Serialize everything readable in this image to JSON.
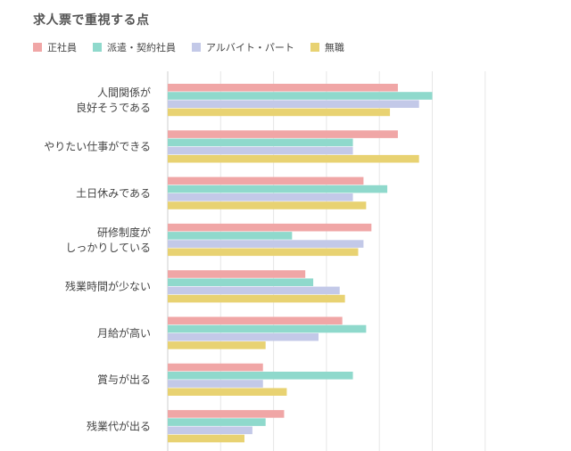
{
  "chart_data": {
    "type": "bar",
    "orientation": "horizontal",
    "title": "求人票で重視する点",
    "categories": [
      [
        "人間関係が",
        "良好そうである"
      ],
      [
        "やりたい仕事ができる"
      ],
      [
        "土日休みである"
      ],
      [
        "研修制度が",
        "しっかりしている"
      ],
      [
        "残業時間が少ない"
      ],
      [
        "月給が高い"
      ],
      [
        "賞与が出る"
      ],
      [
        "残業代が出る"
      ]
    ],
    "series": [
      {
        "name": "正社員",
        "color": "#f0a6a6",
        "values": [
          43.5,
          43.5,
          37,
          38.5,
          26,
          33,
          18,
          22
        ]
      },
      {
        "name": "派遣・契約社員",
        "color": "#8fd9cc",
        "values": [
          50,
          35,
          41.5,
          23.5,
          27.5,
          37.5,
          35,
          18.5
        ]
      },
      {
        "name": "アルバイト・パート",
        "color": "#c3c9e8",
        "values": [
          47.5,
          35,
          35,
          37,
          32.5,
          28.5,
          18,
          16
        ]
      },
      {
        "name": "無職",
        "color": "#e8d272",
        "values": [
          42,
          47.5,
          37.5,
          36,
          33.5,
          18.5,
          22.5,
          14.5
        ]
      }
    ],
    "xlim": [
      0,
      60
    ],
    "grid": true,
    "legend_position": "top-left"
  }
}
